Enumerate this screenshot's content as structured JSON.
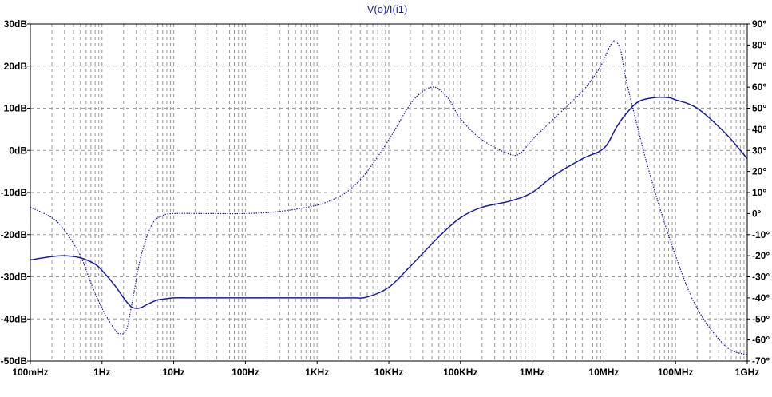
{
  "chart_data": {
    "type": "line",
    "title": "V(o)/I(i1)",
    "x_scale": "log",
    "x_unit": "Hz",
    "xlim": [
      0.1,
      1000000000
    ],
    "x_tick_values": [
      0.1,
      1,
      10,
      100,
      1000,
      10000,
      100000,
      1000000,
      10000000,
      100000000,
      1000000000
    ],
    "x_tick_labels": [
      "100mHz",
      "1Hz",
      "10Hz",
      "100Hz",
      "1KHz",
      "10KHz",
      "100KHz",
      "1MHz",
      "10MHz",
      "100MHz",
      "1GHz"
    ],
    "y_left": {
      "unit": "dB",
      "ylim": [
        -50,
        30
      ],
      "tick_values": [
        30,
        20,
        10,
        0,
        -10,
        -20,
        -30,
        -40,
        -50
      ],
      "tick_labels": [
        "30dB",
        "20dB",
        "10dB",
        "0dB",
        "-10dB",
        "-20dB",
        "-30dB",
        "-40dB",
        "-50dB"
      ]
    },
    "y_right": {
      "unit": "degrees",
      "ylim": [
        -70,
        90
      ],
      "tick_values": [
        90,
        80,
        70,
        60,
        50,
        40,
        30,
        20,
        10,
        0,
        -10,
        -20,
        -30,
        -40,
        -50,
        -60,
        -70
      ],
      "tick_labels": [
        "90°",
        "80°",
        "70°",
        "60°",
        "50°",
        "40°",
        "30°",
        "20°",
        "10°",
        "0°",
        "-10°",
        "-20°",
        "-30°",
        "-40°",
        "-50°",
        "-60°",
        "-70°"
      ]
    },
    "grid": true,
    "color": "#1a1aa8",
    "series": [
      {
        "quantity": "magnitude",
        "axis": "left",
        "style": "solid",
        "x": [
          0.1,
          0.2,
          0.3,
          0.5,
          0.8,
          1,
          1.5,
          2,
          2.5,
          3,
          3.5,
          4,
          5,
          6,
          8,
          10,
          20,
          50,
          100,
          300,
          1000,
          3000,
          5000,
          10000,
          20000,
          50000,
          100000,
          200000,
          500000,
          1000000,
          2000000,
          5000000,
          10000000,
          15000000,
          20000000,
          30000000,
          50000000,
          80000000,
          100000000,
          200000000,
          500000000,
          1000000000
        ],
        "values": [
          -26,
          -25.2,
          -25,
          -25.5,
          -27,
          -28.5,
          -32,
          -35,
          -37,
          -37.5,
          -37.3,
          -36.8,
          -36,
          -35.5,
          -35.2,
          -35,
          -35,
          -35,
          -35,
          -35,
          -35,
          -35,
          -34.8,
          -32.5,
          -27.5,
          -20.5,
          -16,
          -13.5,
          -12,
          -10,
          -6,
          -2,
          0.5,
          5.5,
          8.5,
          11.5,
          12.5,
          12.5,
          12,
          10,
          4,
          -2
        ]
      },
      {
        "quantity": "phase",
        "axis": "right",
        "style": "dotted",
        "x": [
          0.1,
          0.2,
          0.3,
          0.5,
          0.7,
          1,
          1.5,
          1.8,
          2.2,
          2.7,
          3.5,
          5,
          7,
          10,
          30,
          100,
          300,
          1000,
          2000,
          3000,
          5000,
          10000,
          20000,
          30000,
          40000,
          50000,
          70000,
          100000,
          200000,
          500000,
          700000,
          1000000,
          2000000,
          5000000,
          8000000,
          10000000,
          12000000,
          14000000,
          17000000,
          20000000,
          30000000,
          50000000,
          100000000,
          200000000,
          500000000,
          1000000000
        ],
        "values": [
          3,
          -2,
          -8,
          -20,
          -33,
          -45,
          -55,
          -57,
          -55,
          -40,
          -20,
          -5,
          -1,
          0,
          0,
          0,
          1,
          4,
          8,
          12,
          20,
          35,
          52,
          58,
          60,
          59,
          54,
          45,
          35,
          28,
          29,
          35,
          45,
          58,
          67,
          73,
          79,
          82,
          78,
          65,
          40,
          12,
          -20,
          -45,
          -63,
          -67
        ]
      }
    ]
  }
}
